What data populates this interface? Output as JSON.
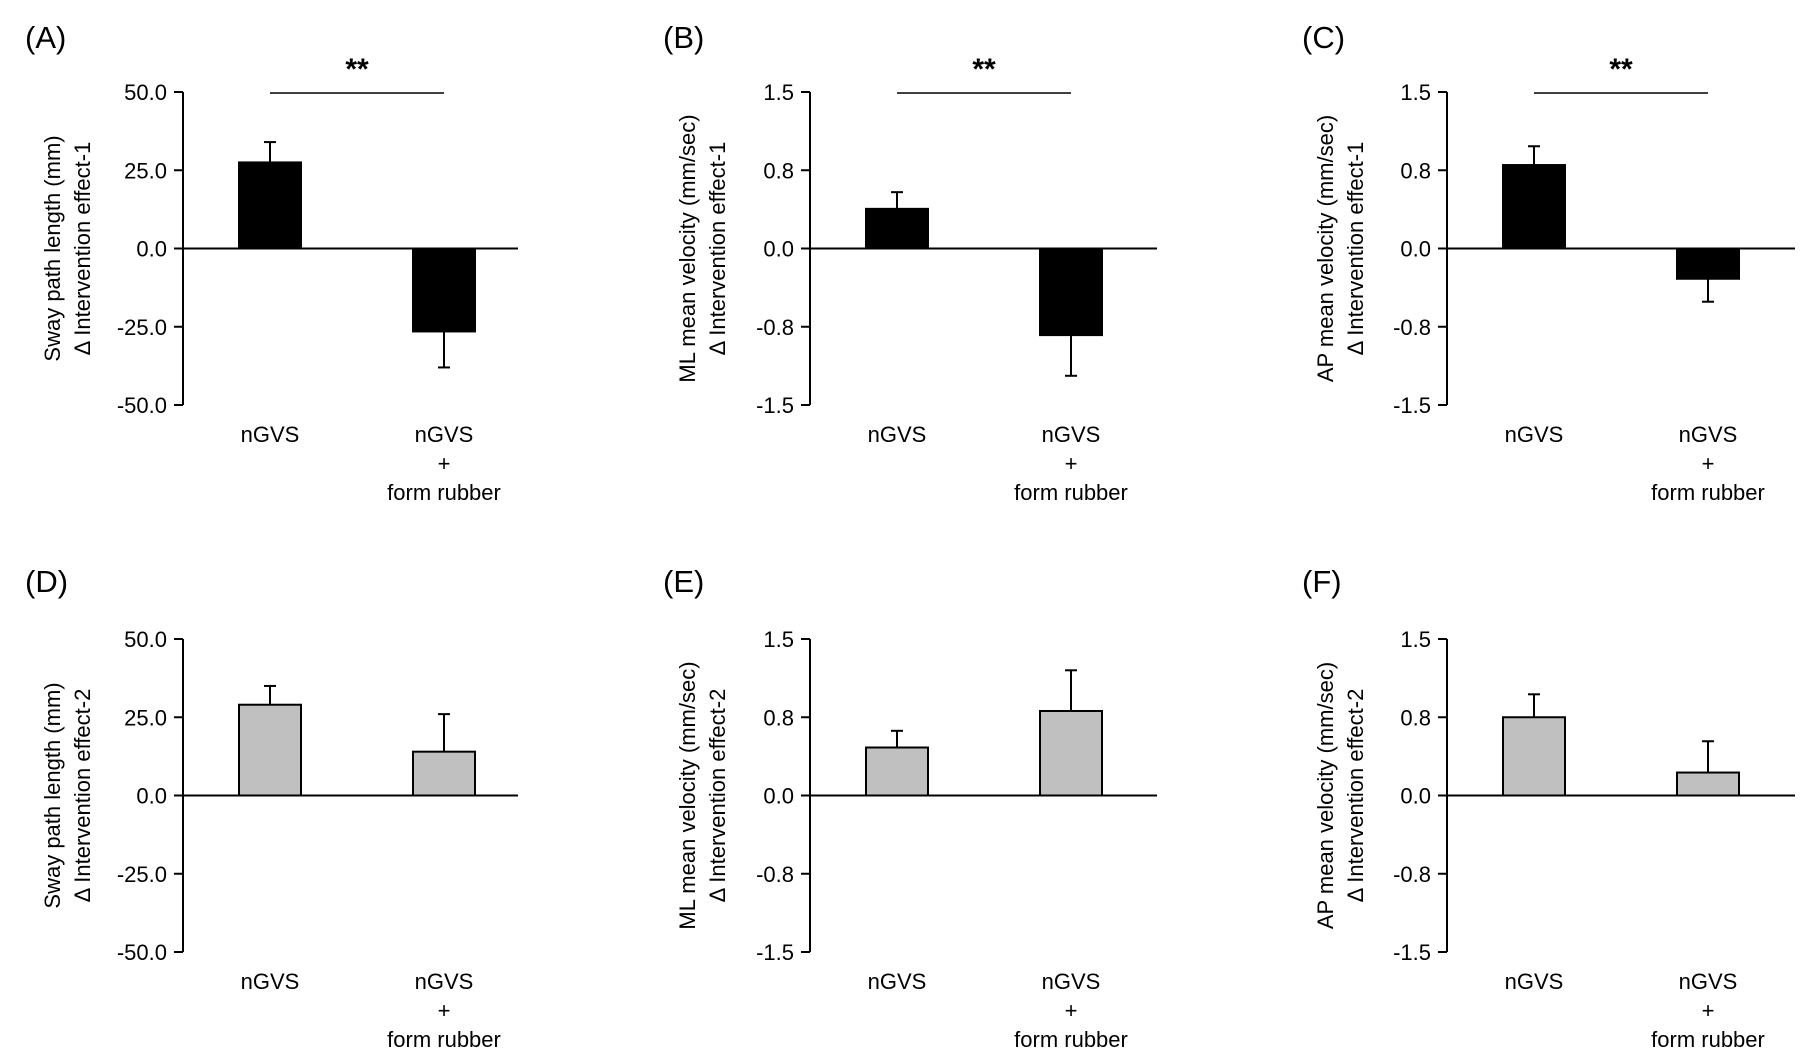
{
  "chart_data": [
    {
      "type": "bar",
      "panel": "(A)",
      "categories": [
        [
          "nGVS"
        ],
        [
          "nGVS",
          "+",
          "form rubber"
        ]
      ],
      "values": [
        27.5,
        -26.5
      ],
      "errors": [
        6.5,
        11.5
      ],
      "colors": [
        "#000000",
        "#000000"
      ],
      "ylabel": [
        "Sway path length (mm)",
        "Δ Intervention effect-1"
      ],
      "yticks": [
        "50.0",
        "25.0",
        "0.0",
        "-25.0",
        "-50.0"
      ],
      "ylim": [
        -50,
        50
      ],
      "significance": "**"
    },
    {
      "type": "bar",
      "panel": "(B)",
      "categories": [
        [
          "nGVS"
        ],
        [
          "nGVS",
          "+",
          "form rubber"
        ]
      ],
      "values": [
        0.38,
        -0.83
      ],
      "errors": [
        0.16,
        0.39
      ],
      "colors": [
        "#000000",
        "#000000"
      ],
      "ylabel": [
        "ML mean velocity (mm/sec)",
        "Δ Intervention effect-1"
      ],
      "yticks": [
        "1.5",
        "0.8",
        "0.0",
        "-0.8",
        "-1.5"
      ],
      "ylim": [
        -1.5,
        1.5
      ],
      "significance": "**"
    },
    {
      "type": "bar",
      "panel": "(C)",
      "categories": [
        [
          "nGVS"
        ],
        [
          "nGVS",
          "+",
          "form rubber"
        ]
      ],
      "values": [
        0.8,
        -0.29
      ],
      "errors": [
        0.18,
        0.22
      ],
      "colors": [
        "#000000",
        "#000000"
      ],
      "ylabel": [
        "AP mean velocity (mm/sec)",
        "Δ Intervention effect-1"
      ],
      "yticks": [
        "1.5",
        "0.8",
        "0.0",
        "-0.8",
        "-1.5"
      ],
      "ylim": [
        -1.5,
        1.5
      ],
      "significance": "**"
    },
    {
      "type": "bar",
      "panel": "(D)",
      "categories": [
        [
          "nGVS"
        ],
        [
          "nGVS",
          "+",
          "form rubber"
        ]
      ],
      "values": [
        29.0,
        14.0
      ],
      "errors": [
        6.0,
        12.0
      ],
      "colors": [
        "#c0c0c0",
        "#c0c0c0"
      ],
      "ylabel": [
        "Sway path length (mm)",
        "Δ Intervention effect-2"
      ],
      "yticks": [
        "50.0",
        "25.0",
        "0.0",
        "-25.0",
        "-50.0"
      ],
      "ylim": [
        -50,
        50
      ],
      "significance": ""
    },
    {
      "type": "bar",
      "panel": "(E)",
      "categories": [
        [
          "nGVS"
        ],
        [
          "nGVS",
          "+",
          "form rubber"
        ]
      ],
      "values": [
        0.46,
        0.81
      ],
      "errors": [
        0.16,
        0.39
      ],
      "colors": [
        "#c0c0c0",
        "#c0c0c0"
      ],
      "ylabel": [
        "ML mean velocity (mm/sec)",
        "Δ Intervention effect-2"
      ],
      "yticks": [
        "1.5",
        "0.8",
        "0.0",
        "-0.8",
        "-1.5"
      ],
      "ylim": [
        -1.5,
        1.5
      ],
      "significance": ""
    },
    {
      "type": "bar",
      "panel": "(F)",
      "categories": [
        [
          "nGVS"
        ],
        [
          "nGVS",
          "+",
          "form rubber"
        ]
      ],
      "values": [
        0.75,
        0.22
      ],
      "errors": [
        0.22,
        0.3
      ],
      "colors": [
        "#c0c0c0",
        "#c0c0c0"
      ],
      "ylabel": [
        "AP mean velocity (mm/sec)",
        "Δ Intervention effect-2"
      ],
      "yticks": [
        "1.5",
        "0.8",
        "0.0",
        "-0.8",
        "-1.5"
      ],
      "ylim": [
        -1.5,
        1.5
      ],
      "significance": ""
    }
  ]
}
